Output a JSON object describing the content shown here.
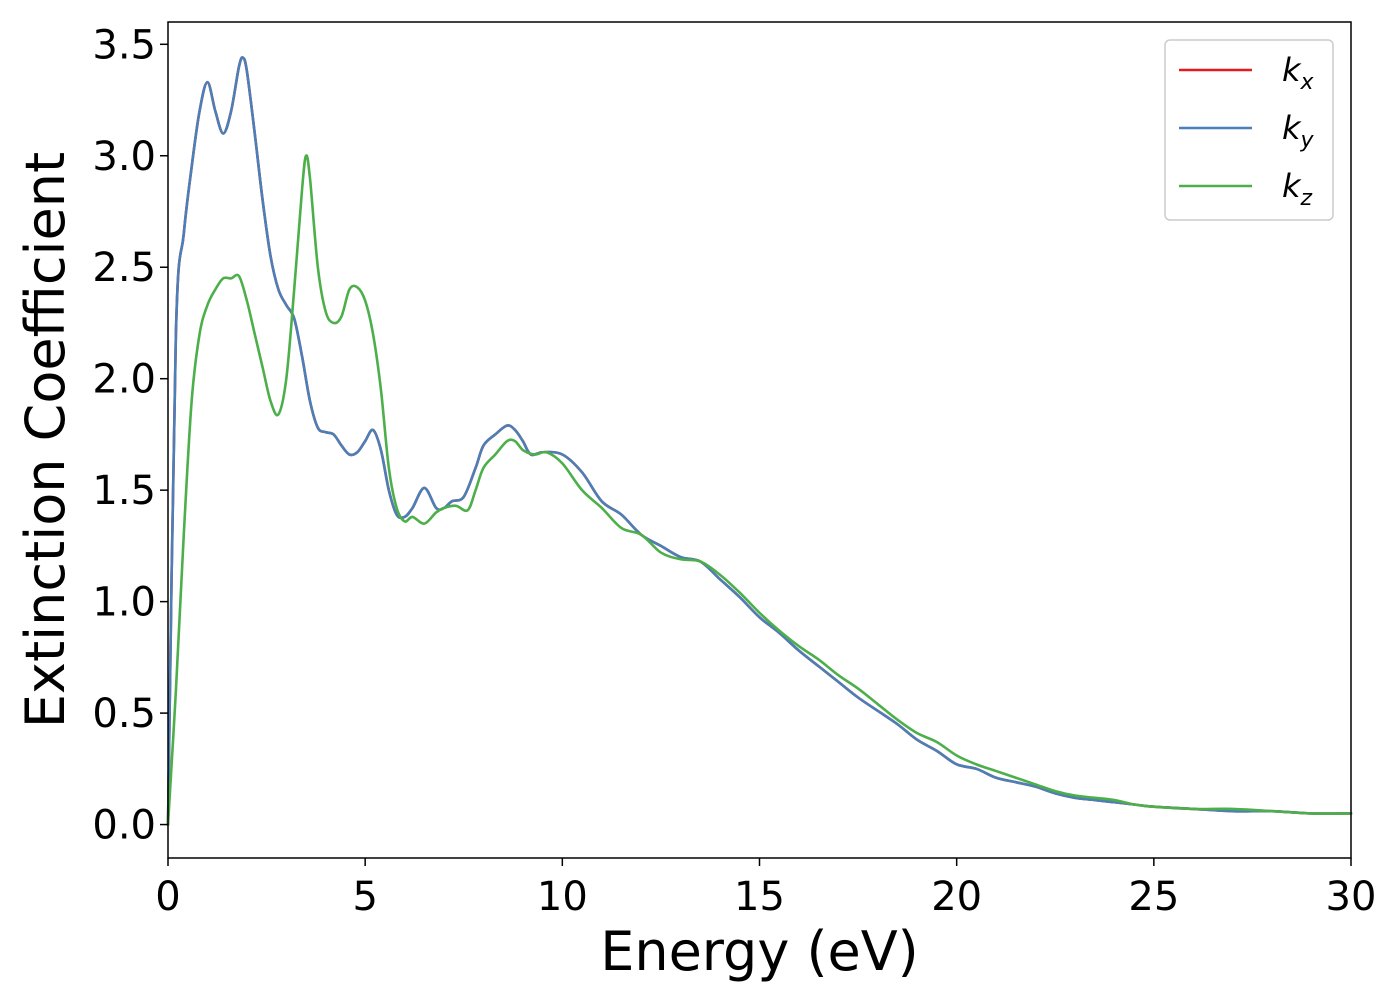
{
  "chart_data": {
    "type": "line",
    "title": "",
    "xlabel": "Energy (eV)",
    "ylabel": "Extinction Coefficient",
    "xlim": [
      0,
      30
    ],
    "ylim": [
      -0.15,
      3.6
    ],
    "xticks": [
      0,
      5,
      10,
      15,
      20,
      25,
      30
    ],
    "yticks": [
      0.0,
      0.5,
      1.0,
      1.5,
      2.0,
      2.5,
      3.0,
      3.5
    ],
    "xtick_labels": [
      "0",
      "5",
      "10",
      "15",
      "20",
      "25",
      "30"
    ],
    "ytick_labels": [
      "0.0",
      "0.5",
      "1.0",
      "1.5",
      "2.0",
      "2.5",
      "3.0",
      "3.5"
    ],
    "grid": false,
    "legend_position": "top-right",
    "series": [
      {
        "name": "k",
        "subscript": "x",
        "color": "#e41a1c",
        "x": [
          0,
          0.2,
          0.4,
          0.6,
          0.8,
          1.0,
          1.2,
          1.4,
          1.6,
          1.8,
          1.9,
          2.0,
          2.2,
          2.4,
          2.6,
          2.8,
          3.0,
          3.2,
          3.4,
          3.6,
          3.8,
          4.0,
          4.2,
          4.4,
          4.6,
          4.8,
          5.0,
          5.2,
          5.4,
          5.6,
          5.8,
          6.0,
          6.2,
          6.5,
          6.8,
          7.0,
          7.2,
          7.5,
          7.8,
          8.0,
          8.3,
          8.6,
          8.8,
          9.0,
          9.2,
          9.5,
          10.0,
          10.5,
          11.0,
          11.5,
          12.0,
          12.5,
          13.0,
          13.5,
          14.0,
          14.5,
          15.0,
          15.5,
          16.0,
          16.5,
          17.0,
          17.5,
          18.0,
          18.5,
          19.0,
          19.5,
          20.0,
          20.5,
          21.0,
          21.5,
          22.0,
          22.5,
          23.0,
          23.5,
          24.0,
          24.5,
          25.0,
          26.0,
          27.0,
          28.0,
          29.0,
          30.0
        ],
        "values": [
          0.0,
          2.2,
          2.65,
          2.95,
          3.2,
          3.33,
          3.2,
          3.1,
          3.2,
          3.4,
          3.44,
          3.38,
          3.1,
          2.8,
          2.55,
          2.4,
          2.33,
          2.27,
          2.1,
          1.9,
          1.78,
          1.76,
          1.75,
          1.7,
          1.66,
          1.67,
          1.72,
          1.77,
          1.68,
          1.5,
          1.39,
          1.38,
          1.42,
          1.51,
          1.42,
          1.42,
          1.45,
          1.47,
          1.6,
          1.7,
          1.75,
          1.79,
          1.77,
          1.72,
          1.66,
          1.67,
          1.66,
          1.58,
          1.45,
          1.39,
          1.3,
          1.25,
          1.2,
          1.18,
          1.1,
          1.02,
          0.93,
          0.86,
          0.78,
          0.71,
          0.64,
          0.57,
          0.51,
          0.45,
          0.38,
          0.33,
          0.27,
          0.25,
          0.21,
          0.19,
          0.17,
          0.14,
          0.12,
          0.11,
          0.1,
          0.09,
          0.08,
          0.07,
          0.06,
          0.06,
          0.05,
          0.05
        ]
      },
      {
        "name": "k",
        "subscript": "y",
        "color": "#4a7fb8",
        "x": [
          0,
          0.2,
          0.4,
          0.6,
          0.8,
          1.0,
          1.2,
          1.4,
          1.6,
          1.8,
          1.9,
          2.0,
          2.2,
          2.4,
          2.6,
          2.8,
          3.0,
          3.2,
          3.4,
          3.6,
          3.8,
          4.0,
          4.2,
          4.4,
          4.6,
          4.8,
          5.0,
          5.2,
          5.4,
          5.6,
          5.8,
          6.0,
          6.2,
          6.5,
          6.8,
          7.0,
          7.2,
          7.5,
          7.8,
          8.0,
          8.3,
          8.6,
          8.8,
          9.0,
          9.2,
          9.5,
          10.0,
          10.5,
          11.0,
          11.5,
          12.0,
          12.5,
          13.0,
          13.5,
          14.0,
          14.5,
          15.0,
          15.5,
          16.0,
          16.5,
          17.0,
          17.5,
          18.0,
          18.5,
          19.0,
          19.5,
          20.0,
          20.5,
          21.0,
          21.5,
          22.0,
          22.5,
          23.0,
          23.5,
          24.0,
          24.5,
          25.0,
          26.0,
          27.0,
          28.0,
          29.0,
          30.0
        ],
        "values": [
          0.0,
          2.2,
          2.65,
          2.95,
          3.2,
          3.33,
          3.2,
          3.1,
          3.2,
          3.4,
          3.44,
          3.38,
          3.1,
          2.8,
          2.55,
          2.4,
          2.33,
          2.27,
          2.1,
          1.9,
          1.78,
          1.76,
          1.75,
          1.7,
          1.66,
          1.67,
          1.72,
          1.77,
          1.68,
          1.5,
          1.39,
          1.38,
          1.42,
          1.51,
          1.42,
          1.42,
          1.45,
          1.47,
          1.6,
          1.7,
          1.75,
          1.79,
          1.77,
          1.72,
          1.66,
          1.67,
          1.66,
          1.58,
          1.45,
          1.39,
          1.3,
          1.25,
          1.2,
          1.18,
          1.1,
          1.02,
          0.93,
          0.86,
          0.78,
          0.71,
          0.64,
          0.57,
          0.51,
          0.45,
          0.38,
          0.33,
          0.27,
          0.25,
          0.21,
          0.19,
          0.17,
          0.14,
          0.12,
          0.11,
          0.1,
          0.09,
          0.08,
          0.07,
          0.06,
          0.06,
          0.05,
          0.05
        ]
      },
      {
        "name": "k",
        "subscript": "z",
        "color": "#4daf4a",
        "x": [
          0,
          0.2,
          0.4,
          0.6,
          0.8,
          1.0,
          1.2,
          1.4,
          1.6,
          1.8,
          2.0,
          2.2,
          2.4,
          2.6,
          2.8,
          3.0,
          3.2,
          3.4,
          3.5,
          3.6,
          3.8,
          4.0,
          4.2,
          4.4,
          4.6,
          4.8,
          5.0,
          5.2,
          5.4,
          5.6,
          5.8,
          6.0,
          6.2,
          6.5,
          6.8,
          7.0,
          7.3,
          7.6,
          7.8,
          8.0,
          8.3,
          8.6,
          8.8,
          9.0,
          9.3,
          9.6,
          10.0,
          10.5,
          11.0,
          11.5,
          12.0,
          12.5,
          13.0,
          13.5,
          14.0,
          14.5,
          15.0,
          15.5,
          16.0,
          16.5,
          17.0,
          17.5,
          18.0,
          18.5,
          19.0,
          19.5,
          20.0,
          20.5,
          21.0,
          21.5,
          22.0,
          22.5,
          23.0,
          23.5,
          24.0,
          24.5,
          25.0,
          26.0,
          27.0,
          28.0,
          29.0,
          30.0
        ],
        "values": [
          0.0,
          0.6,
          1.3,
          1.9,
          2.2,
          2.33,
          2.4,
          2.45,
          2.45,
          2.46,
          2.35,
          2.2,
          2.05,
          1.9,
          1.84,
          2.0,
          2.4,
          2.85,
          3.0,
          2.9,
          2.5,
          2.3,
          2.25,
          2.28,
          2.4,
          2.41,
          2.35,
          2.2,
          1.95,
          1.6,
          1.42,
          1.36,
          1.38,
          1.35,
          1.4,
          1.42,
          1.43,
          1.41,
          1.5,
          1.6,
          1.66,
          1.72,
          1.72,
          1.68,
          1.66,
          1.67,
          1.62,
          1.5,
          1.42,
          1.33,
          1.3,
          1.22,
          1.19,
          1.18,
          1.12,
          1.04,
          0.95,
          0.87,
          0.8,
          0.74,
          0.67,
          0.61,
          0.54,
          0.47,
          0.41,
          0.37,
          0.31,
          0.27,
          0.24,
          0.21,
          0.18,
          0.15,
          0.13,
          0.12,
          0.11,
          0.09,
          0.08,
          0.07,
          0.07,
          0.06,
          0.05,
          0.05
        ]
      }
    ]
  }
}
